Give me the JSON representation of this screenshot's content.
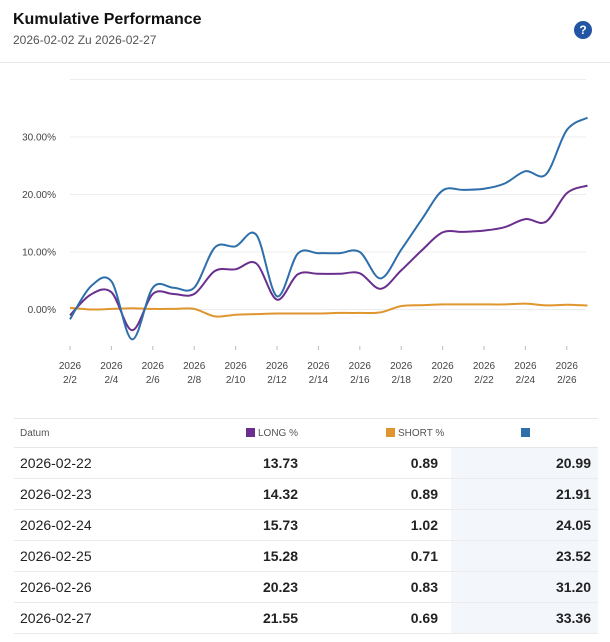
{
  "header": {
    "title": "Kumulative Performance",
    "subtitle": "2026-02-02 Zu 2026-02-27",
    "help_glyph": "?"
  },
  "colors": {
    "long": "#6a2f8e",
    "short": "#e0962e",
    "total": "#2e6fab"
  },
  "chart_data": {
    "type": "line",
    "x": [
      "2026-02-02",
      "2026-02-03",
      "2026-02-04",
      "2026-02-05",
      "2026-02-06",
      "2026-02-07",
      "2026-02-08",
      "2026-02-09",
      "2026-02-10",
      "2026-02-11",
      "2026-02-12",
      "2026-02-13",
      "2026-02-14",
      "2026-02-15",
      "2026-02-16",
      "2026-02-17",
      "2026-02-18",
      "2026-02-19",
      "2026-02-20",
      "2026-02-21",
      "2026-02-22",
      "2026-02-23",
      "2026-02-24",
      "2026-02-25",
      "2026-02-26",
      "2026-02-27"
    ],
    "series": [
      {
        "name": "LONG %",
        "color": "#6a2f8e",
        "values": [
          -1.0,
          2.6,
          3.0,
          -3.6,
          2.7,
          2.7,
          2.7,
          6.7,
          7.0,
          8.0,
          1.7,
          6.1,
          6.2,
          6.2,
          6.3,
          3.6,
          6.8,
          10.3,
          13.4,
          13.5,
          13.73,
          14.32,
          15.73,
          15.28,
          20.23,
          21.55
        ]
      },
      {
        "name": "SHORT %",
        "color": "#e0962e",
        "values": [
          0.3,
          0.0,
          0.1,
          0.2,
          0.1,
          0.1,
          0.1,
          -1.2,
          -0.9,
          -0.8,
          -0.7,
          -0.7,
          -0.7,
          -0.6,
          -0.6,
          -0.5,
          0.6,
          0.75,
          0.89,
          0.89,
          0.89,
          0.89,
          1.02,
          0.71,
          0.83,
          0.69
        ]
      },
      {
        "name": "",
        "color": "#2e6fab",
        "values": [
          -1.7,
          4.0,
          4.9,
          -5.2,
          3.8,
          3.8,
          3.8,
          10.8,
          11.0,
          13.0,
          2.3,
          9.7,
          9.8,
          9.8,
          10.0,
          5.4,
          10.4,
          15.7,
          20.7,
          20.8,
          20.99,
          21.91,
          24.05,
          23.52,
          31.2,
          33.36
        ]
      }
    ],
    "ylim": [
      -8,
      40
    ],
    "yticks": [
      0,
      10,
      20,
      30
    ],
    "ytick_labels": [
      "0.00%",
      "10.00%",
      "20.00%",
      "30.00%"
    ],
    "xtick_labels": [
      {
        "year": "2026",
        "day": "2/2"
      },
      {
        "year": "2026",
        "day": "2/4"
      },
      {
        "year": "2026",
        "day": "2/6"
      },
      {
        "year": "2026",
        "day": "2/8"
      },
      {
        "year": "2026",
        "day": "2/10"
      },
      {
        "year": "2026",
        "day": "2/12"
      },
      {
        "year": "2026",
        "day": "2/14"
      },
      {
        "year": "2026",
        "day": "2/16"
      },
      {
        "year": "2026",
        "day": "2/18"
      },
      {
        "year": "2026",
        "day": "2/20"
      },
      {
        "year": "2026",
        "day": "2/22"
      },
      {
        "year": "2026",
        "day": "2/24"
      },
      {
        "year": "2026",
        "day": "2/26"
      }
    ],
    "grid": true
  },
  "table": {
    "headers": {
      "date": "Datum",
      "long": "LONG %",
      "short": "SHORT %",
      "total": ""
    },
    "rows": [
      {
        "date": "2026-02-22",
        "long": "13.73",
        "short": "0.89",
        "total": "20.99"
      },
      {
        "date": "2026-02-23",
        "long": "14.32",
        "short": "0.89",
        "total": "21.91"
      },
      {
        "date": "2026-02-24",
        "long": "15.73",
        "short": "1.02",
        "total": "24.05"
      },
      {
        "date": "2026-02-25",
        "long": "15.28",
        "short": "0.71",
        "total": "23.52"
      },
      {
        "date": "2026-02-26",
        "long": "20.23",
        "short": "0.83",
        "total": "31.20"
      },
      {
        "date": "2026-02-27",
        "long": "21.55",
        "short": "0.69",
        "total": "33.36"
      }
    ]
  }
}
